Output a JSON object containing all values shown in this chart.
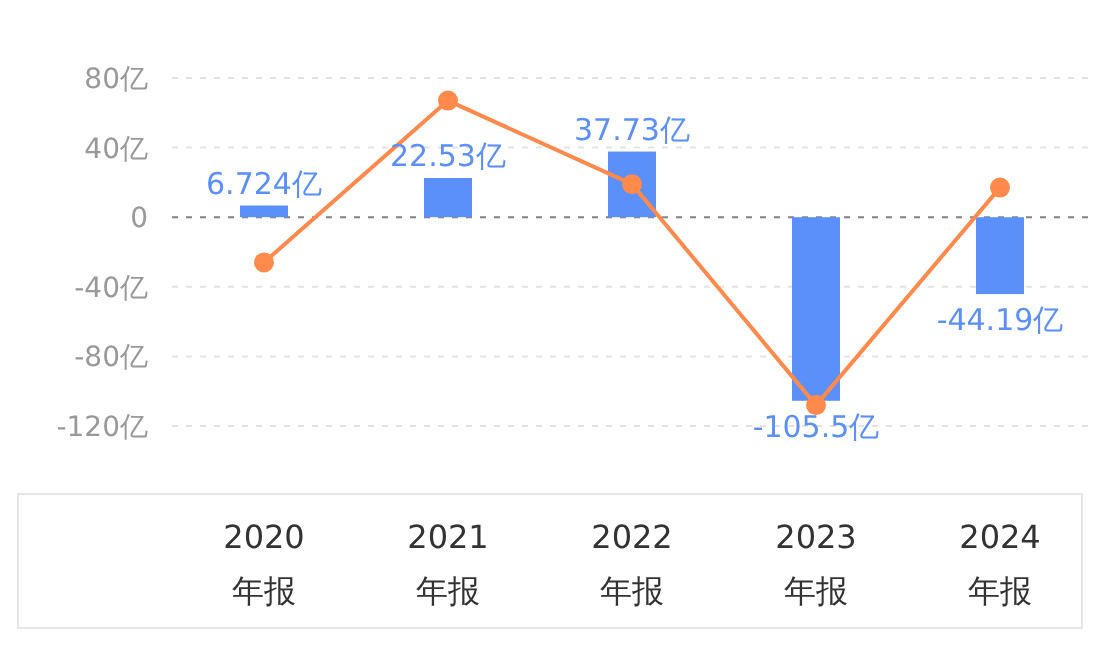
{
  "chart_data": {
    "type": "bar",
    "categories": [
      "2020\n年报",
      "2021\n年报",
      "2022\n年报",
      "2023\n年报",
      "2024\n年报"
    ],
    "series": [
      {
        "color": "#5b8ff9",
        "values": [
          6.724,
          22.53,
          37.73,
          -105.5,
          -44.19
        ],
        "value_labels": [
          "6.724亿",
          "22.53亿",
          "37.73亿",
          "-105.5亿",
          "-44.19亿"
        ]
      },
      {
        "type": "line",
        "color": "#ff8a4c",
        "values": [
          -26,
          67,
          19,
          -108,
          17
        ],
        "marker": "circle"
      }
    ],
    "ylim": [
      -120,
      80
    ],
    "yticks": [
      {
        "value": 80,
        "label": "80亿"
      },
      {
        "value": 40,
        "label": "40亿"
      },
      0,
      {
        "value": -40,
        "label": "-40亿"
      },
      {
        "value": -80,
        "label": "-80亿"
      },
      {
        "value": -120,
        "label": "-120亿"
      }
    ],
    "grid": "y",
    "ref_lines": [
      {
        "axis": "y",
        "value": 0,
        "color": "#888888",
        "line_style": "dashed"
      }
    ]
  }
}
